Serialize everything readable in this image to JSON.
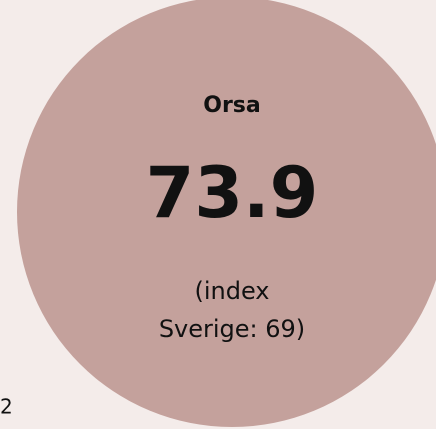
{
  "region": "Orsa",
  "value": 73.9,
  "note_line1": "(index",
  "note_line2": "Sverige: 69)",
  "corner_text": "2"
}
